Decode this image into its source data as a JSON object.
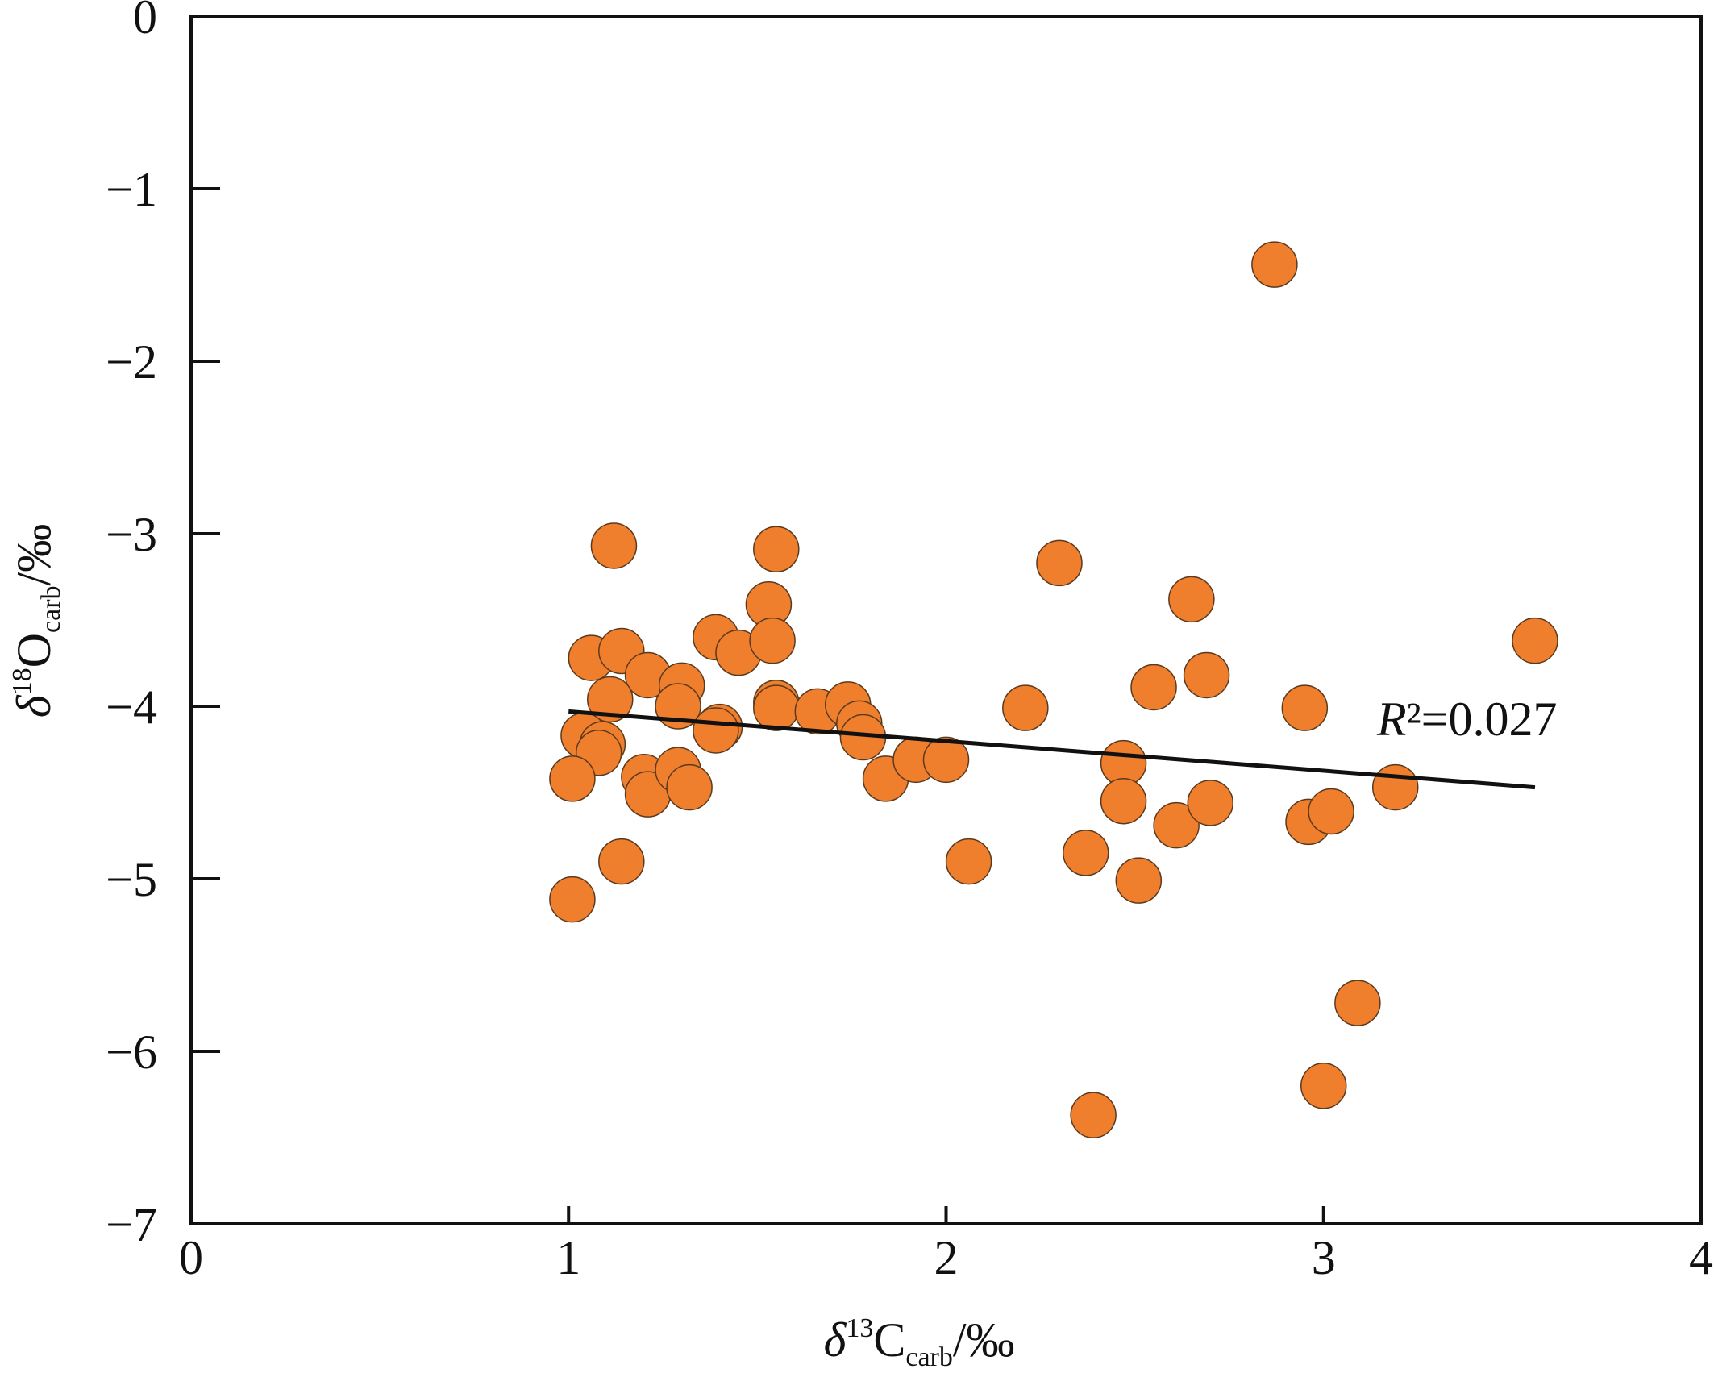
{
  "chart_data": {
    "type": "scatter",
    "title": "",
    "xlabel": "δ13Ccarb/‰",
    "ylabel": "δ18Ocarb/‰",
    "xlim": [
      0,
      4
    ],
    "ylim": [
      -7,
      0
    ],
    "x_ticks": [
      0,
      1,
      2,
      3,
      4
    ],
    "y_ticks": [
      0,
      -1,
      -2,
      -3,
      -4,
      -5,
      -6,
      -7
    ],
    "x_tick_labels": [
      "0",
      "1",
      "2",
      "3",
      "4"
    ],
    "y_tick_labels": [
      "0",
      "−1",
      "−2",
      "−3",
      "−4",
      "−5",
      "−6",
      "−7"
    ],
    "grid": false,
    "legend": "none",
    "point_color": "#ef7e2d",
    "point_edge_color": "#5a3a1e",
    "series": [
      {
        "points": [
          [
            1.12,
            -3.07
          ],
          [
            1.55,
            -3.09
          ],
          [
            1.53,
            -3.41
          ],
          [
            1.06,
            -3.72
          ],
          [
            1.14,
            -3.68
          ],
          [
            1.21,
            -3.82
          ],
          [
            1.3,
            -3.88
          ],
          [
            1.29,
            -4.0
          ],
          [
            1.11,
            -3.96
          ],
          [
            1.04,
            -4.17
          ],
          [
            1.09,
            -4.22
          ],
          [
            1.08,
            -4.27
          ],
          [
            1.01,
            -4.42
          ],
          [
            1.2,
            -4.41
          ],
          [
            1.21,
            -4.51
          ],
          [
            1.29,
            -4.37
          ],
          [
            1.32,
            -4.47
          ],
          [
            1.39,
            -3.6
          ],
          [
            1.45,
            -3.69
          ],
          [
            1.54,
            -3.62
          ],
          [
            1.4,
            -4.12
          ],
          [
            1.39,
            -4.14
          ],
          [
            1.55,
            -3.98
          ],
          [
            1.55,
            -4.01
          ],
          [
            1.66,
            -4.03
          ],
          [
            1.74,
            -3.99
          ],
          [
            1.77,
            -4.1
          ],
          [
            1.78,
            -4.18
          ],
          [
            1.84,
            -4.42
          ],
          [
            1.92,
            -4.31
          ],
          [
            2.0,
            -4.31
          ],
          [
            1.14,
            -4.9
          ],
          [
            1.01,
            -5.12
          ],
          [
            2.06,
            -4.9
          ],
          [
            2.21,
            -4.01
          ],
          [
            2.3,
            -3.17
          ],
          [
            2.37,
            -4.85
          ],
          [
            2.39,
            -6.37
          ],
          [
            2.47,
            -4.33
          ],
          [
            2.47,
            -4.55
          ],
          [
            2.51,
            -5.01
          ],
          [
            2.55,
            -3.89
          ],
          [
            2.61,
            -4.69
          ],
          [
            2.65,
            -3.38
          ],
          [
            2.69,
            -3.82
          ],
          [
            2.7,
            -4.56
          ],
          [
            2.87,
            -1.44
          ],
          [
            2.95,
            -4.01
          ],
          [
            2.96,
            -4.67
          ],
          [
            3.02,
            -4.61
          ],
          [
            3.0,
            -6.2
          ],
          [
            3.09,
            -5.72
          ],
          [
            3.19,
            -4.47
          ],
          [
            3.56,
            -3.62
          ]
        ]
      }
    ],
    "trendline": {
      "x": [
        1.0,
        3.56
      ],
      "y": [
        -4.03,
        -4.47
      ]
    },
    "annotation": "R²=0.027"
  }
}
